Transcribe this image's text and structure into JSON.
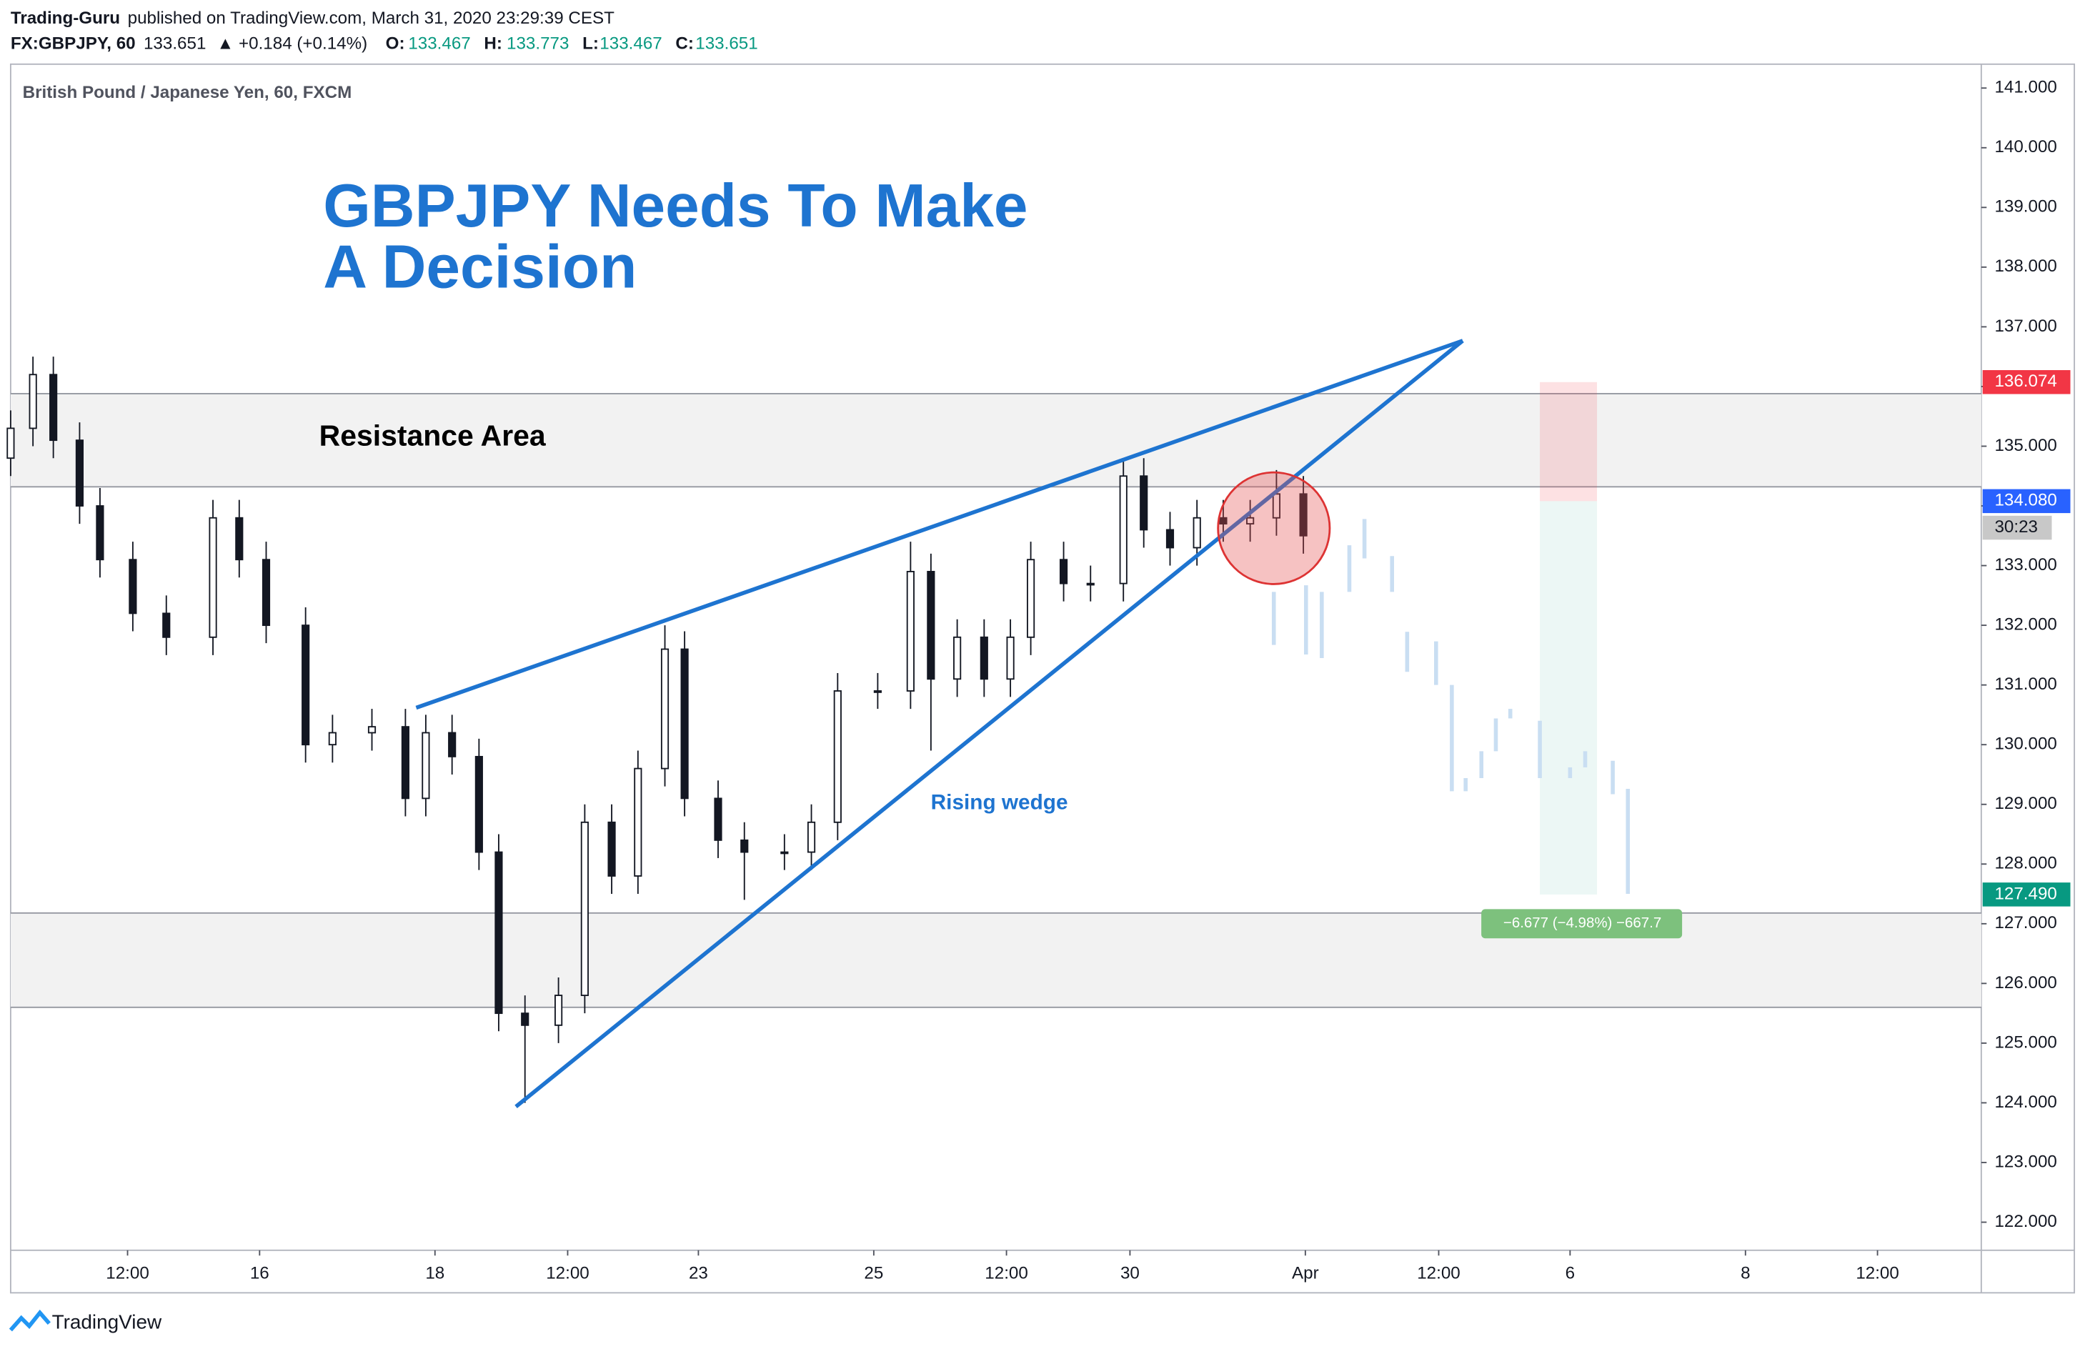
{
  "header": {
    "author": "Trading-Guru",
    "published": "published on TradingView.com, March 31, 2020 23:29:39 CEST",
    "symbol": "FX:GBPJPY, 60",
    "last": "133.651",
    "change": "▲ +0.184 (+0.14%)",
    "o_label": "O:",
    "o": "133.467",
    "h_label": "H:",
    "h": "133.773",
    "l_label": "L:",
    "l": "133.467",
    "c_label": "C:",
    "c": "133.651"
  },
  "footer": {
    "brand": "TradingView"
  },
  "chart_data": {
    "type": "candlestick",
    "subtitle": "British Pound / Japanese Yen, 60, FXCM",
    "title_lines": [
      "GBPJPY Needs To Make",
      "A Decision"
    ],
    "annotations": {
      "resistance": "Resistance Area",
      "wedge": "Rising wedge",
      "countdown": "30:23",
      "measure": "−6.677 (−4.98%) −667.7"
    },
    "x": [
      0,
      3.4,
      6.5,
      10.5,
      13.6,
      18.6,
      23.7,
      30.8,
      34.8,
      38.9,
      44.9,
      49,
      55,
      60.1,
      63.2,
      67.2,
      71.3,
      74.3,
      78.3,
      83.4,
      87.4,
      91.5,
      95.5,
      99.6,
      102.6,
      107.7,
      111.7,
      117.8,
      121.9,
      125.9,
      132,
      137,
      140.1,
      144.1,
      148.2,
      152.2,
      155.3,
      160.3,
      164.4,
      169.4,
      172.5,
      176.5,
      180.6,
      184.6,
      188.7,
      192.7,
      196.8
    ],
    "open": [
      134.8,
      135.3,
      136.2,
      135.1,
      134.0,
      133.1,
      132.2,
      131.8,
      133.8,
      133.1,
      132.0,
      130.0,
      130.2,
      130.3,
      129.1,
      130.2,
      129.8,
      128.2,
      125.5,
      125.3,
      125.8,
      128.7,
      127.8,
      129.6,
      131.6,
      129.1,
      128.4,
      128.2,
      128.2,
      128.7,
      130.9,
      130.9,
      132.9,
      131.1,
      131.8,
      131.1,
      131.8,
      133.1,
      132.7,
      132.7,
      134.5,
      133.6,
      133.3,
      133.8,
      133.7,
      133.8,
      134.2
    ],
    "high": [
      135.6,
      136.5,
      136.5,
      135.4,
      134.3,
      133.4,
      132.5,
      134.1,
      134.1,
      133.4,
      132.3,
      130.5,
      130.6,
      130.6,
      130.5,
      130.5,
      130.1,
      128.5,
      125.8,
      126.1,
      129.0,
      129.0,
      129.9,
      132.0,
      131.9,
      129.4,
      128.7,
      128.5,
      129.0,
      131.2,
      131.2,
      133.4,
      133.2,
      132.1,
      132.1,
      132.1,
      133.4,
      133.4,
      133.0,
      134.8,
      134.8,
      133.9,
      134.1,
      134.1,
      134.1,
      134.6,
      134.5
    ],
    "low": [
      134.5,
      135.0,
      134.8,
      133.7,
      132.8,
      131.9,
      131.5,
      131.5,
      132.8,
      131.7,
      129.7,
      129.7,
      129.9,
      128.8,
      128.8,
      129.5,
      127.9,
      125.2,
      124.0,
      125.0,
      125.5,
      127.5,
      127.5,
      129.3,
      128.8,
      128.1,
      127.4,
      127.9,
      127.9,
      128.4,
      130.6,
      130.6,
      129.9,
      130.8,
      130.8,
      130.8,
      131.5,
      132.4,
      132.4,
      132.4,
      133.3,
      133.0,
      133.0,
      133.4,
      133.4,
      133.5,
      133.2
    ],
    "close": [
      135.3,
      136.2,
      135.1,
      134.0,
      133.1,
      132.2,
      131.8,
      133.8,
      133.1,
      132.0,
      130.0,
      130.2,
      130.3,
      129.1,
      130.2,
      129.8,
      128.2,
      125.5,
      125.3,
      125.8,
      128.7,
      127.8,
      129.6,
      131.6,
      129.1,
      128.4,
      128.2,
      128.2,
      128.7,
      130.9,
      130.9,
      132.9,
      131.1,
      131.8,
      131.1,
      131.8,
      133.1,
      132.7,
      132.7,
      134.5,
      133.6,
      133.3,
      133.8,
      133.7,
      133.8,
      134.2,
      133.5
    ],
    "projection": {
      "x": [
        192.3,
        197.2,
        199.6,
        203.8,
        206.1,
        210.3,
        212.6,
        217.0,
        219.4,
        221.5,
        223.9,
        226.1,
        228.3,
        232.8,
        237.4,
        239.7,
        243.9,
        246.2
      ],
      "high": [
        132.56,
        132.67,
        132.56,
        133.34,
        133.78,
        133.16,
        131.89,
        131.73,
        131.0,
        129.44,
        129.89,
        130.44,
        130.6,
        130.4,
        129.62,
        129.89,
        129.73,
        129.26
      ],
      "low": [
        131.67,
        131.51,
        131.45,
        132.56,
        133.12,
        132.56,
        131.22,
        131.0,
        129.22,
        129.22,
        129.44,
        129.89,
        130.44,
        129.44,
        129.44,
        129.62,
        129.17,
        127.5
      ]
    },
    "zones": [
      [
        134.32,
        135.88
      ],
      [
        125.6,
        127.18
      ]
    ],
    "position": {
      "x": [
        232.8,
        241.5
      ],
      "stop": 136.074,
      "entry": {
        "value": 134.08,
        "label": "134.080"
      },
      "target": {
        "value": 127.49,
        "label": "127.490"
      }
    },
    "xlim": [
      0,
      300
    ],
    "ylim": [
      121.53,
      141.4
    ],
    "xticks": [
      {
        "value": 17.8,
        "label": "12:00"
      },
      {
        "value": 37.9,
        "label": "16"
      },
      {
        "value": 64.6,
        "label": "18"
      },
      {
        "value": 84.8,
        "label": "12:00"
      },
      {
        "value": 104.7,
        "label": "23"
      },
      {
        "value": 131.4,
        "label": "25"
      },
      {
        "value": 151.6,
        "label": "12:00"
      },
      {
        "value": 170.4,
        "label": "30"
      },
      {
        "value": 197.1,
        "label": "Apr"
      },
      {
        "value": 217.4,
        "label": "12:00"
      },
      {
        "value": 237.4,
        "label": "6"
      },
      {
        "value": 264.1,
        "label": "8"
      },
      {
        "value": 284.2,
        "label": "12:00"
      }
    ],
    "yticks": [
      {
        "value": 122,
        "label": "122.000"
      },
      {
        "value": 123,
        "label": "123.000"
      },
      {
        "value": 124,
        "label": "124.000"
      },
      {
        "value": 125,
        "label": "125.000"
      },
      {
        "value": 126,
        "label": "126.000"
      },
      {
        "value": 127,
        "label": "127.000"
      },
      {
        "value": 128,
        "label": "128.000"
      },
      {
        "value": 129,
        "label": "129.000"
      },
      {
        "value": 130,
        "label": "130.000"
      },
      {
        "value": 131,
        "label": "131.000"
      },
      {
        "value": 132,
        "label": "132.000"
      },
      {
        "value": 133,
        "label": "133.000"
      },
      {
        "value": 134,
        "label": "134.000"
      },
      {
        "value": 135,
        "label": "135.000"
      },
      {
        "value": 136,
        "label": "136.000"
      },
      {
        "value": 137,
        "label": "137.000"
      },
      {
        "value": 138,
        "label": "138.000"
      },
      {
        "value": 139,
        "label": "139.000"
      },
      {
        "value": 140,
        "label": "140.000"
      },
      {
        "value": 141,
        "label": "141.000"
      }
    ],
    "colors": {
      "candle": "#131722",
      "projection": "#c9def2",
      "zone": "#f2f2f2",
      "wedge": "#1e74d0",
      "stop": "#f23645",
      "entry": "#2962ff",
      "target": "#089981"
    }
  }
}
